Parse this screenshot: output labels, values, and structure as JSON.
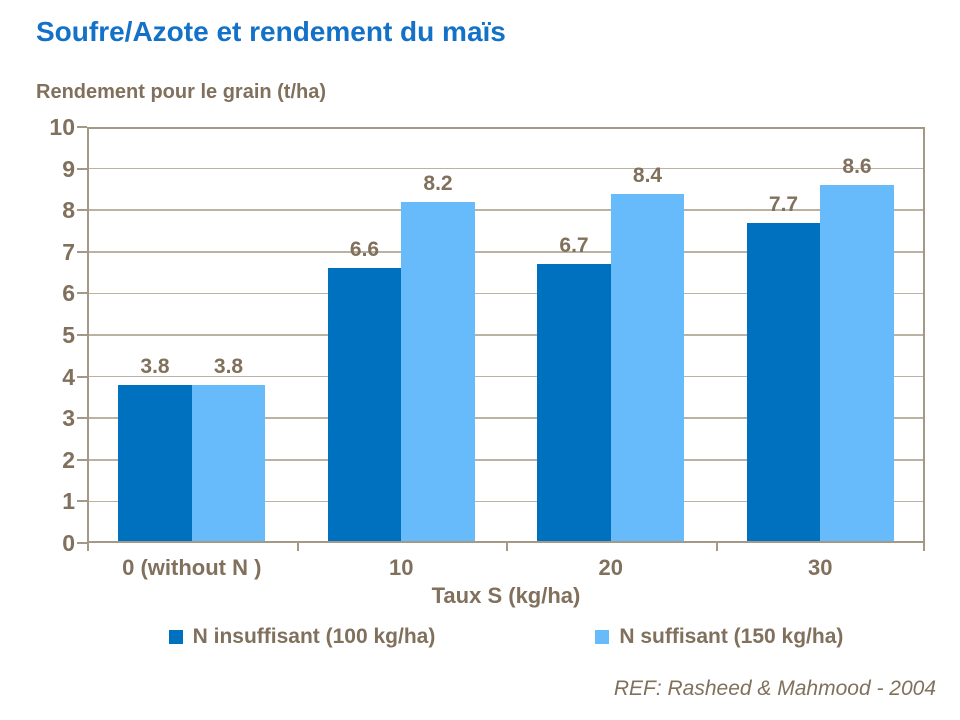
{
  "slide": {
    "ref": "REF: Rasheed & Mahmood - 2004"
  },
  "colors": {
    "title_blue": "#1371C7",
    "text_brown": "#80705C",
    "axis_line": "#A39986",
    "gridline": "#BBB2A4",
    "series1": "#0071BF",
    "series2": "#67BBFB",
    "background": "#FFFFFF"
  },
  "chart_data": {
    "type": "bar",
    "title": "Soufre/Azote et rendement du maïs",
    "ylabel": "Rendement pour le grain (t/ha)",
    "xlabel": "Taux S (kg/ha)",
    "categories": [
      "0 (without N )",
      "10",
      "20",
      "30"
    ],
    "series": [
      {
        "name": "N insuffisant (100 kg/ha)",
        "color": "#0071BF",
        "values": [
          3.8,
          6.6,
          6.7,
          7.7
        ]
      },
      {
        "name": "N suffisant (150 kg/ha)",
        "color": "#67BBFB",
        "values": [
          3.8,
          8.2,
          8.4,
          8.6
        ]
      }
    ],
    "ylim": [
      0,
      10
    ],
    "ytick_step": 1,
    "yticks": [
      0,
      1,
      2,
      3,
      4,
      5,
      6,
      7,
      8,
      9,
      10
    ],
    "grid": true,
    "value_labels_decimals": 1,
    "legend_position": "bottom"
  }
}
